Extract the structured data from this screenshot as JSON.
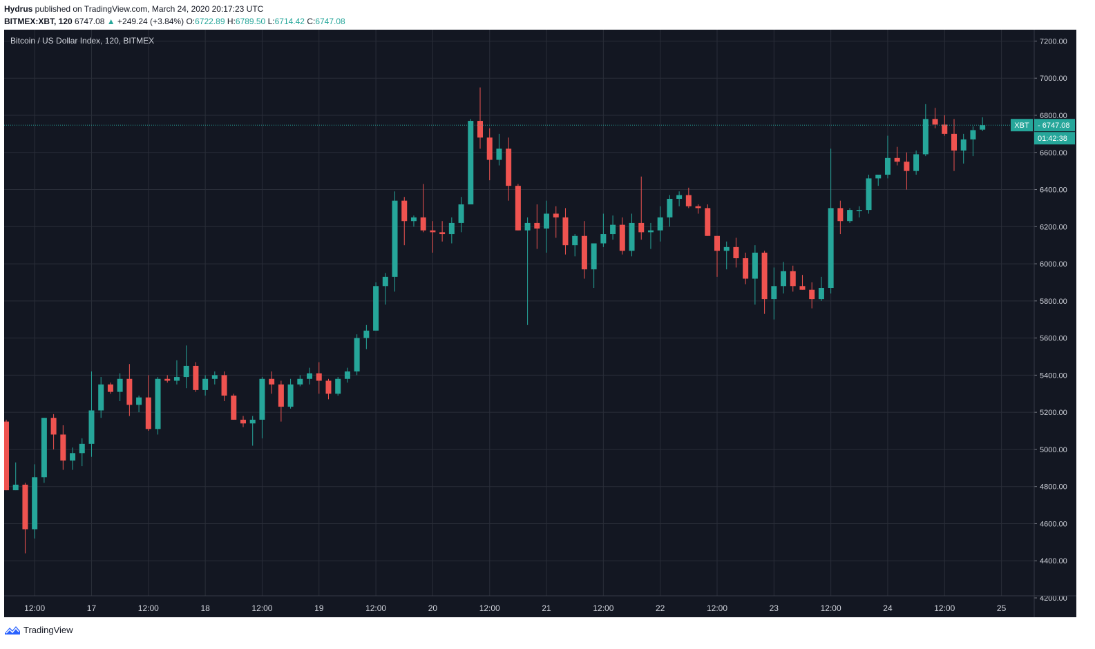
{
  "header": {
    "publisher": "Hydrus",
    "published_text": " published on TradingView.com, March 24, 2020 20:17:23 UTC",
    "symbol": "BITMEX:XBT, 120",
    "last": "6747.08",
    "change": "+249.24 (+3.84%)",
    "o_label": "O:",
    "o_value": "6722.89",
    "h_label": "H:",
    "h_value": "6789.50",
    "l_label": "L:",
    "l_value": "6714.42",
    "c_label": "C:",
    "c_value": "6747.08"
  },
  "chart_title": "Bitcoin / US Dollar Index, 120, BITMEX",
  "footer": {
    "brand": "TradingView"
  },
  "colors": {
    "up": "#26a69a",
    "down": "#ef5350",
    "background": "#131722",
    "grid": "#2a2e39",
    "text": "#d1d4dc"
  },
  "chart_data": {
    "type": "candlestick",
    "title": "Bitcoin / US Dollar Index, 120, BITMEX",
    "interval_minutes": 120,
    "ylim": [
      4200,
      7250
    ],
    "y_ticks": [
      4200,
      4400,
      4600,
      4800,
      5000,
      5200,
      5400,
      5600,
      5800,
      6000,
      6200,
      6400,
      6600,
      6800,
      7000,
      7200
    ],
    "x_ticks": [
      {
        "label": "12:00",
        "bar": 3
      },
      {
        "label": "17",
        "bar": 9
      },
      {
        "label": "12:00",
        "bar": 15
      },
      {
        "label": "18",
        "bar": 21
      },
      {
        "label": "12:00",
        "bar": 27
      },
      {
        "label": "19",
        "bar": 33
      },
      {
        "label": "12:00",
        "bar": 39
      },
      {
        "label": "20",
        "bar": 45
      },
      {
        "label": "12:00",
        "bar": 51
      },
      {
        "label": "21",
        "bar": 57
      },
      {
        "label": "12:00",
        "bar": 63
      },
      {
        "label": "22",
        "bar": 69
      },
      {
        "label": "12:00",
        "bar": 75
      },
      {
        "label": "23",
        "bar": 81
      },
      {
        "label": "12:00",
        "bar": 87
      },
      {
        "label": "24",
        "bar": 93
      },
      {
        "label": "12:00",
        "bar": 99
      },
      {
        "label": "25",
        "bar": 105
      }
    ],
    "grid": true,
    "last_price": {
      "value": 6747.08,
      "symbol": "XBT",
      "label": "6747.08",
      "countdown": "01:42:38"
    },
    "candles": [
      {
        "o": 5150,
        "h": 5160,
        "l": 4780,
        "c": 4780
      },
      {
        "o": 4780,
        "h": 4930,
        "l": 4780,
        "c": 4810
      },
      {
        "o": 4810,
        "h": 4820,
        "l": 4440,
        "c": 4570
      },
      {
        "o": 4570,
        "h": 4920,
        "l": 4520,
        "c": 4850
      },
      {
        "o": 4850,
        "h": 5170,
        "l": 4820,
        "c": 5170
      },
      {
        "o": 5170,
        "h": 5190,
        "l": 5000,
        "c": 5080
      },
      {
        "o": 5080,
        "h": 5130,
        "l": 4890,
        "c": 4940
      },
      {
        "o": 4940,
        "h": 5010,
        "l": 4890,
        "c": 4980
      },
      {
        "o": 4980,
        "h": 5060,
        "l": 4910,
        "c": 5030
      },
      {
        "o": 5030,
        "h": 5420,
        "l": 4960,
        "c": 5210
      },
      {
        "o": 5210,
        "h": 5390,
        "l": 5170,
        "c": 5350
      },
      {
        "o": 5350,
        "h": 5360,
        "l": 5300,
        "c": 5310
      },
      {
        "o": 5310,
        "h": 5410,
        "l": 5260,
        "c": 5380
      },
      {
        "o": 5380,
        "h": 5460,
        "l": 5180,
        "c": 5240
      },
      {
        "o": 5240,
        "h": 5290,
        "l": 5200,
        "c": 5280
      },
      {
        "o": 5280,
        "h": 5400,
        "l": 5100,
        "c": 5110
      },
      {
        "o": 5110,
        "h": 5390,
        "l": 5080,
        "c": 5380
      },
      {
        "o": 5380,
        "h": 5400,
        "l": 5360,
        "c": 5370
      },
      {
        "o": 5370,
        "h": 5480,
        "l": 5350,
        "c": 5390
      },
      {
        "o": 5390,
        "h": 5560,
        "l": 5330,
        "c": 5450
      },
      {
        "o": 5450,
        "h": 5470,
        "l": 5310,
        "c": 5320
      },
      {
        "o": 5320,
        "h": 5400,
        "l": 5290,
        "c": 5380
      },
      {
        "o": 5380,
        "h": 5420,
        "l": 5350,
        "c": 5400
      },
      {
        "o": 5400,
        "h": 5420,
        "l": 5260,
        "c": 5290
      },
      {
        "o": 5290,
        "h": 5300,
        "l": 5160,
        "c": 5160
      },
      {
        "o": 5160,
        "h": 5180,
        "l": 5120,
        "c": 5140
      },
      {
        "o": 5140,
        "h": 5180,
        "l": 5020,
        "c": 5160
      },
      {
        "o": 5160,
        "h": 5390,
        "l": 5060,
        "c": 5380
      },
      {
        "o": 5380,
        "h": 5420,
        "l": 5300,
        "c": 5350
      },
      {
        "o": 5350,
        "h": 5370,
        "l": 5150,
        "c": 5230
      },
      {
        "o": 5230,
        "h": 5380,
        "l": 5220,
        "c": 5350
      },
      {
        "o": 5350,
        "h": 5400,
        "l": 5340,
        "c": 5380
      },
      {
        "o": 5380,
        "h": 5440,
        "l": 5350,
        "c": 5410
      },
      {
        "o": 5410,
        "h": 5470,
        "l": 5300,
        "c": 5370
      },
      {
        "o": 5370,
        "h": 5380,
        "l": 5270,
        "c": 5300
      },
      {
        "o": 5300,
        "h": 5390,
        "l": 5290,
        "c": 5380
      },
      {
        "o": 5380,
        "h": 5440,
        "l": 5360,
        "c": 5420
      },
      {
        "o": 5420,
        "h": 5620,
        "l": 5400,
        "c": 5600
      },
      {
        "o": 5600,
        "h": 5670,
        "l": 5540,
        "c": 5640
      },
      {
        "o": 5640,
        "h": 5900,
        "l": 5640,
        "c": 5880
      },
      {
        "o": 5880,
        "h": 5950,
        "l": 5780,
        "c": 5930
      },
      {
        "o": 5930,
        "h": 6390,
        "l": 5850,
        "c": 6340
      },
      {
        "o": 6340,
        "h": 6360,
        "l": 6100,
        "c": 6230
      },
      {
        "o": 6230,
        "h": 6260,
        "l": 6200,
        "c": 6250
      },
      {
        "o": 6250,
        "h": 6430,
        "l": 6170,
        "c": 6180
      },
      {
        "o": 6180,
        "h": 6230,
        "l": 6060,
        "c": 6170
      },
      {
        "o": 6170,
        "h": 6230,
        "l": 6120,
        "c": 6160
      },
      {
        "o": 6160,
        "h": 6250,
        "l": 6110,
        "c": 6220
      },
      {
        "o": 6220,
        "h": 6360,
        "l": 6170,
        "c": 6320
      },
      {
        "o": 6320,
        "h": 6780,
        "l": 6320,
        "c": 6770
      },
      {
        "o": 6770,
        "h": 6950,
        "l": 6620,
        "c": 6680
      },
      {
        "o": 6680,
        "h": 6730,
        "l": 6450,
        "c": 6560
      },
      {
        "o": 6560,
        "h": 6700,
        "l": 6530,
        "c": 6620
      },
      {
        "o": 6620,
        "h": 6680,
        "l": 6340,
        "c": 6420
      },
      {
        "o": 6420,
        "h": 6430,
        "l": 6180,
        "c": 6180
      },
      {
        "o": 6180,
        "h": 6250,
        "l": 5670,
        "c": 6220
      },
      {
        "o": 6220,
        "h": 6320,
        "l": 6080,
        "c": 6190
      },
      {
        "o": 6190,
        "h": 6340,
        "l": 6060,
        "c": 6270
      },
      {
        "o": 6270,
        "h": 6310,
        "l": 6140,
        "c": 6250
      },
      {
        "o": 6250,
        "h": 6300,
        "l": 6050,
        "c": 6100
      },
      {
        "o": 6100,
        "h": 6160,
        "l": 6040,
        "c": 6150
      },
      {
        "o": 6150,
        "h": 6230,
        "l": 5920,
        "c": 5970
      },
      {
        "o": 5970,
        "h": 6110,
        "l": 5870,
        "c": 6110
      },
      {
        "o": 6110,
        "h": 6270,
        "l": 6090,
        "c": 6160
      },
      {
        "o": 6160,
        "h": 6260,
        "l": 6130,
        "c": 6210
      },
      {
        "o": 6210,
        "h": 6250,
        "l": 6050,
        "c": 6070
      },
      {
        "o": 6070,
        "h": 6270,
        "l": 6040,
        "c": 6220
      },
      {
        "o": 6220,
        "h": 6470,
        "l": 6130,
        "c": 6170
      },
      {
        "o": 6170,
        "h": 6220,
        "l": 6080,
        "c": 6180
      },
      {
        "o": 6180,
        "h": 6310,
        "l": 6120,
        "c": 6250
      },
      {
        "o": 6250,
        "h": 6370,
        "l": 6200,
        "c": 6350
      },
      {
        "o": 6350,
        "h": 6390,
        "l": 6310,
        "c": 6370
      },
      {
        "o": 6370,
        "h": 6410,
        "l": 6300,
        "c": 6310
      },
      {
        "o": 6310,
        "h": 6320,
        "l": 6270,
        "c": 6300
      },
      {
        "o": 6300,
        "h": 6320,
        "l": 6150,
        "c": 6150
      },
      {
        "o": 6150,
        "h": 6150,
        "l": 5930,
        "c": 6070
      },
      {
        "o": 6070,
        "h": 6120,
        "l": 5970,
        "c": 6090
      },
      {
        "o": 6090,
        "h": 6140,
        "l": 5980,
        "c": 6030
      },
      {
        "o": 6030,
        "h": 6060,
        "l": 5890,
        "c": 5920
      },
      {
        "o": 5920,
        "h": 6100,
        "l": 5780,
        "c": 6060
      },
      {
        "o": 6060,
        "h": 6070,
        "l": 5730,
        "c": 5810
      },
      {
        "o": 5810,
        "h": 5980,
        "l": 5700,
        "c": 5880
      },
      {
        "o": 5880,
        "h": 6010,
        "l": 5840,
        "c": 5960
      },
      {
        "o": 5960,
        "h": 5990,
        "l": 5850,
        "c": 5880
      },
      {
        "o": 5880,
        "h": 5940,
        "l": 5860,
        "c": 5860
      },
      {
        "o": 5860,
        "h": 5900,
        "l": 5760,
        "c": 5810
      },
      {
        "o": 5810,
        "h": 5930,
        "l": 5800,
        "c": 5870
      },
      {
        "o": 5870,
        "h": 6620,
        "l": 5840,
        "c": 6300
      },
      {
        "o": 6300,
        "h": 6340,
        "l": 6160,
        "c": 6230
      },
      {
        "o": 6230,
        "h": 6300,
        "l": 6220,
        "c": 6290
      },
      {
        "o": 6290,
        "h": 6310,
        "l": 6250,
        "c": 6290
      },
      {
        "o": 6290,
        "h": 6480,
        "l": 6270,
        "c": 6460
      },
      {
        "o": 6460,
        "h": 6480,
        "l": 6420,
        "c": 6480
      },
      {
        "o": 6480,
        "h": 6690,
        "l": 6460,
        "c": 6570
      },
      {
        "o": 6570,
        "h": 6630,
        "l": 6530,
        "c": 6550
      },
      {
        "o": 6550,
        "h": 6600,
        "l": 6400,
        "c": 6500
      },
      {
        "o": 6500,
        "h": 6610,
        "l": 6480,
        "c": 6590
      },
      {
        "o": 6590,
        "h": 6860,
        "l": 6580,
        "c": 6780
      },
      {
        "o": 6780,
        "h": 6840,
        "l": 6730,
        "c": 6750
      },
      {
        "o": 6750,
        "h": 6800,
        "l": 6690,
        "c": 6700
      },
      {
        "o": 6700,
        "h": 6780,
        "l": 6500,
        "c": 6610
      },
      {
        "o": 6610,
        "h": 6700,
        "l": 6540,
        "c": 6670
      },
      {
        "o": 6670,
        "h": 6740,
        "l": 6580,
        "c": 6720
      },
      {
        "o": 6722.89,
        "h": 6789.5,
        "l": 6714.42,
        "c": 6747.08
      }
    ]
  }
}
